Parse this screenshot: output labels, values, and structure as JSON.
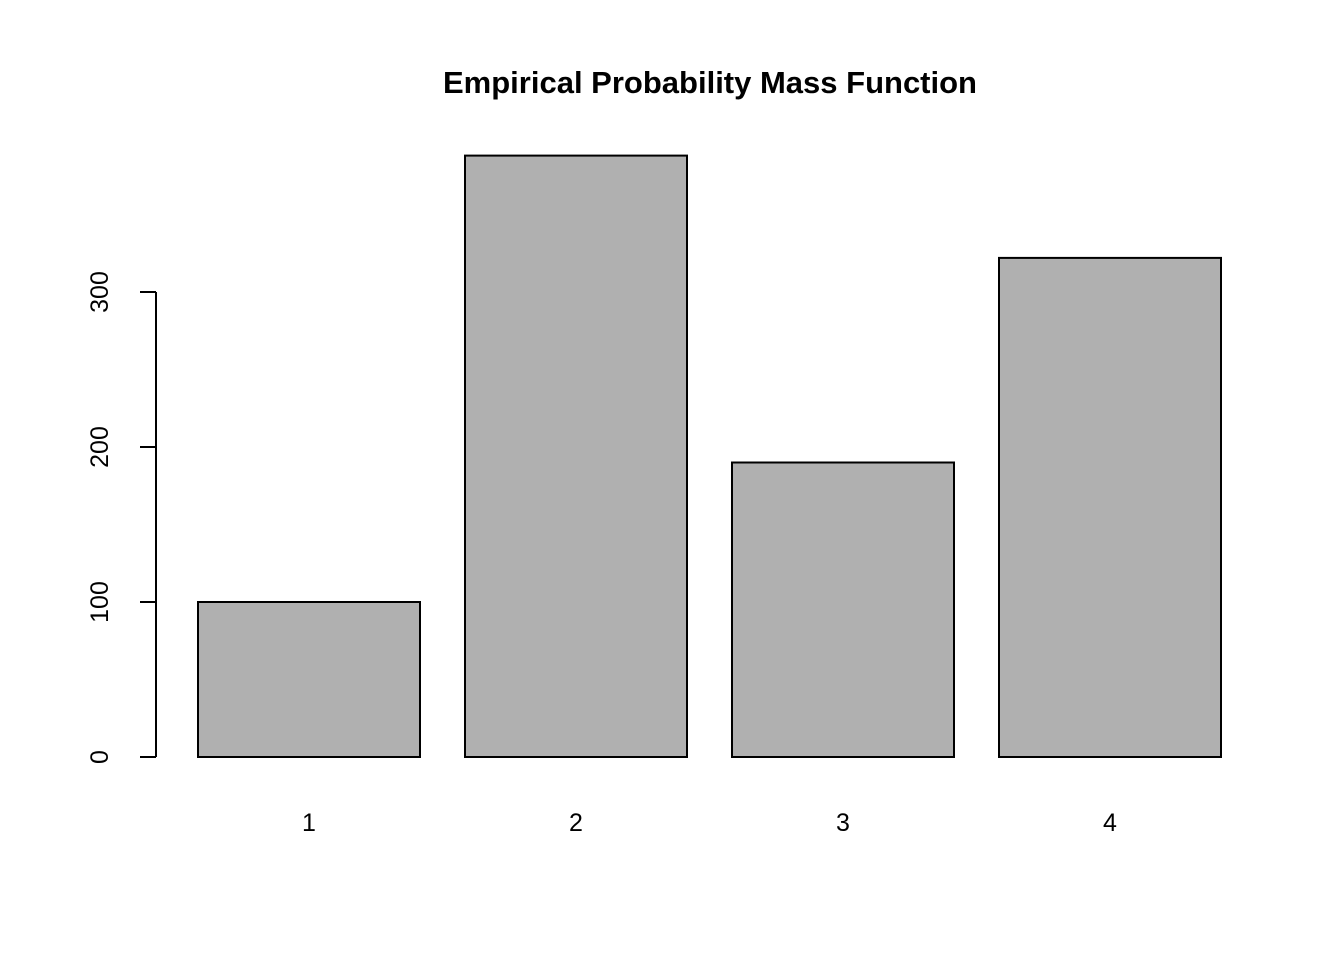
{
  "chart_data": {
    "type": "bar",
    "title": "Empirical Probability Mass Function",
    "categories": [
      "1",
      "2",
      "3",
      "4"
    ],
    "values": [
      100,
      388,
      190,
      322
    ],
    "xlabel": "",
    "ylabel": "",
    "yticks": [
      0,
      100,
      200,
      300
    ],
    "ylim": [
      0,
      390
    ],
    "grid": false,
    "legend": false,
    "bar_fill": "#b0b0b0",
    "bar_stroke": "#000000",
    "axis_color": "#000000",
    "text_color": "#000000",
    "background": "#ffffff"
  }
}
